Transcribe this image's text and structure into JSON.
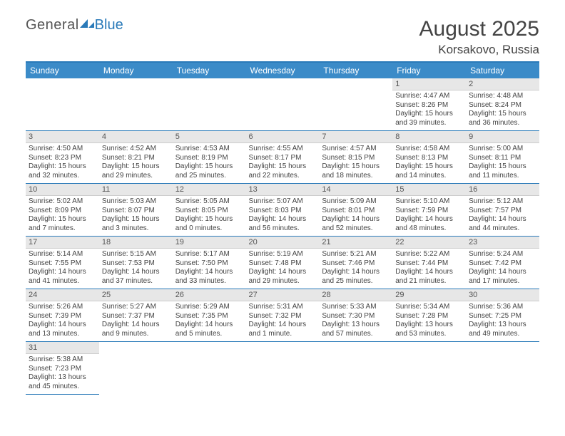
{
  "logo": {
    "part1": "General",
    "part2": "Blue"
  },
  "title": {
    "main": "August 2025",
    "location": "Korsakovo, Russia"
  },
  "colors": {
    "brand": "#2a7ab9",
    "header_bg": "#3b8bc8",
    "daynum_bg": "#e7e7e7",
    "text": "#444444"
  },
  "weekdays": [
    "Sunday",
    "Monday",
    "Tuesday",
    "Wednesday",
    "Thursday",
    "Friday",
    "Saturday"
  ],
  "weeks": [
    [
      {
        "empty": true
      },
      {
        "empty": true
      },
      {
        "empty": true
      },
      {
        "empty": true
      },
      {
        "empty": true
      },
      {
        "day": "1",
        "sunrise": "Sunrise: 4:47 AM",
        "sunset": "Sunset: 8:26 PM",
        "daylight": "Daylight: 15 hours and 39 minutes."
      },
      {
        "day": "2",
        "sunrise": "Sunrise: 4:48 AM",
        "sunset": "Sunset: 8:24 PM",
        "daylight": "Daylight: 15 hours and 36 minutes."
      }
    ],
    [
      {
        "day": "3",
        "sunrise": "Sunrise: 4:50 AM",
        "sunset": "Sunset: 8:23 PM",
        "daylight": "Daylight: 15 hours and 32 minutes."
      },
      {
        "day": "4",
        "sunrise": "Sunrise: 4:52 AM",
        "sunset": "Sunset: 8:21 PM",
        "daylight": "Daylight: 15 hours and 29 minutes."
      },
      {
        "day": "5",
        "sunrise": "Sunrise: 4:53 AM",
        "sunset": "Sunset: 8:19 PM",
        "daylight": "Daylight: 15 hours and 25 minutes."
      },
      {
        "day": "6",
        "sunrise": "Sunrise: 4:55 AM",
        "sunset": "Sunset: 8:17 PM",
        "daylight": "Daylight: 15 hours and 22 minutes."
      },
      {
        "day": "7",
        "sunrise": "Sunrise: 4:57 AM",
        "sunset": "Sunset: 8:15 PM",
        "daylight": "Daylight: 15 hours and 18 minutes."
      },
      {
        "day": "8",
        "sunrise": "Sunrise: 4:58 AM",
        "sunset": "Sunset: 8:13 PM",
        "daylight": "Daylight: 15 hours and 14 minutes."
      },
      {
        "day": "9",
        "sunrise": "Sunrise: 5:00 AM",
        "sunset": "Sunset: 8:11 PM",
        "daylight": "Daylight: 15 hours and 11 minutes."
      }
    ],
    [
      {
        "day": "10",
        "sunrise": "Sunrise: 5:02 AM",
        "sunset": "Sunset: 8:09 PM",
        "daylight": "Daylight: 15 hours and 7 minutes."
      },
      {
        "day": "11",
        "sunrise": "Sunrise: 5:03 AM",
        "sunset": "Sunset: 8:07 PM",
        "daylight": "Daylight: 15 hours and 3 minutes."
      },
      {
        "day": "12",
        "sunrise": "Sunrise: 5:05 AM",
        "sunset": "Sunset: 8:05 PM",
        "daylight": "Daylight: 15 hours and 0 minutes."
      },
      {
        "day": "13",
        "sunrise": "Sunrise: 5:07 AM",
        "sunset": "Sunset: 8:03 PM",
        "daylight": "Daylight: 14 hours and 56 minutes."
      },
      {
        "day": "14",
        "sunrise": "Sunrise: 5:09 AM",
        "sunset": "Sunset: 8:01 PM",
        "daylight": "Daylight: 14 hours and 52 minutes."
      },
      {
        "day": "15",
        "sunrise": "Sunrise: 5:10 AM",
        "sunset": "Sunset: 7:59 PM",
        "daylight": "Daylight: 14 hours and 48 minutes."
      },
      {
        "day": "16",
        "sunrise": "Sunrise: 5:12 AM",
        "sunset": "Sunset: 7:57 PM",
        "daylight": "Daylight: 14 hours and 44 minutes."
      }
    ],
    [
      {
        "day": "17",
        "sunrise": "Sunrise: 5:14 AM",
        "sunset": "Sunset: 7:55 PM",
        "daylight": "Daylight: 14 hours and 41 minutes."
      },
      {
        "day": "18",
        "sunrise": "Sunrise: 5:15 AM",
        "sunset": "Sunset: 7:53 PM",
        "daylight": "Daylight: 14 hours and 37 minutes."
      },
      {
        "day": "19",
        "sunrise": "Sunrise: 5:17 AM",
        "sunset": "Sunset: 7:50 PM",
        "daylight": "Daylight: 14 hours and 33 minutes."
      },
      {
        "day": "20",
        "sunrise": "Sunrise: 5:19 AM",
        "sunset": "Sunset: 7:48 PM",
        "daylight": "Daylight: 14 hours and 29 minutes."
      },
      {
        "day": "21",
        "sunrise": "Sunrise: 5:21 AM",
        "sunset": "Sunset: 7:46 PM",
        "daylight": "Daylight: 14 hours and 25 minutes."
      },
      {
        "day": "22",
        "sunrise": "Sunrise: 5:22 AM",
        "sunset": "Sunset: 7:44 PM",
        "daylight": "Daylight: 14 hours and 21 minutes."
      },
      {
        "day": "23",
        "sunrise": "Sunrise: 5:24 AM",
        "sunset": "Sunset: 7:42 PM",
        "daylight": "Daylight: 14 hours and 17 minutes."
      }
    ],
    [
      {
        "day": "24",
        "sunrise": "Sunrise: 5:26 AM",
        "sunset": "Sunset: 7:39 PM",
        "daylight": "Daylight: 14 hours and 13 minutes."
      },
      {
        "day": "25",
        "sunrise": "Sunrise: 5:27 AM",
        "sunset": "Sunset: 7:37 PM",
        "daylight": "Daylight: 14 hours and 9 minutes."
      },
      {
        "day": "26",
        "sunrise": "Sunrise: 5:29 AM",
        "sunset": "Sunset: 7:35 PM",
        "daylight": "Daylight: 14 hours and 5 minutes."
      },
      {
        "day": "27",
        "sunrise": "Sunrise: 5:31 AM",
        "sunset": "Sunset: 7:32 PM",
        "daylight": "Daylight: 14 hours and 1 minute."
      },
      {
        "day": "28",
        "sunrise": "Sunrise: 5:33 AM",
        "sunset": "Sunset: 7:30 PM",
        "daylight": "Daylight: 13 hours and 57 minutes."
      },
      {
        "day": "29",
        "sunrise": "Sunrise: 5:34 AM",
        "sunset": "Sunset: 7:28 PM",
        "daylight": "Daylight: 13 hours and 53 minutes."
      },
      {
        "day": "30",
        "sunrise": "Sunrise: 5:36 AM",
        "sunset": "Sunset: 7:25 PM",
        "daylight": "Daylight: 13 hours and 49 minutes."
      }
    ],
    [
      {
        "day": "31",
        "sunrise": "Sunrise: 5:38 AM",
        "sunset": "Sunset: 7:23 PM",
        "daylight": "Daylight: 13 hours and 45 minutes."
      },
      {
        "empty": true
      },
      {
        "empty": true
      },
      {
        "empty": true
      },
      {
        "empty": true
      },
      {
        "empty": true
      },
      {
        "empty": true
      }
    ]
  ]
}
